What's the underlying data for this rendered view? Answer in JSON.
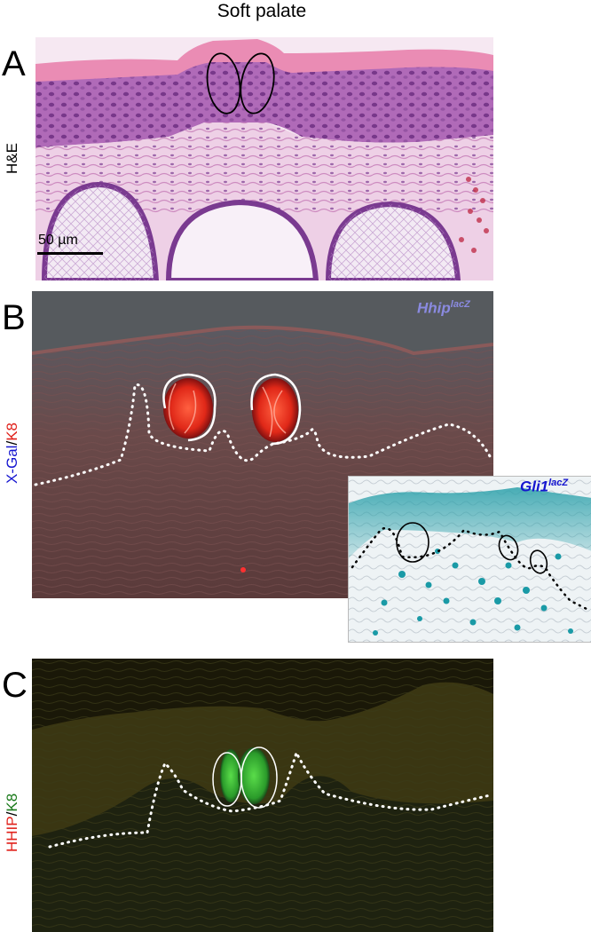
{
  "figure": {
    "title": "Soft palate",
    "panels": [
      {
        "letter": "A",
        "stain_label": "H&E",
        "scale_bar": "50 µm"
      },
      {
        "letter": "B",
        "stain_label_part1": "X-Gal",
        "stain_label_sep": "/",
        "stain_label_part2": "K8",
        "genotype_main": "Hhip",
        "genotype_main_sup": "lacZ",
        "genotype_inset": "Gli1",
        "genotype_inset_sup": "lacZ"
      },
      {
        "letter": "C",
        "stain_label_part1": "HHIP",
        "stain_label_sep": "/",
        "stain_label_part2": "K8"
      }
    ]
  },
  "colors": {
    "he_pink": "#e8a6c8",
    "he_purple": "#7b3a8c",
    "fluor_red": "#ff3020",
    "fluor_green": "#3ec23e",
    "xgal_blue": "#3aa8b0",
    "label_blue": "#1515d0",
    "label_red": "#e0201a",
    "label_green": "#1a7a1a",
    "hhip_label_color": "#8a8ae0"
  }
}
